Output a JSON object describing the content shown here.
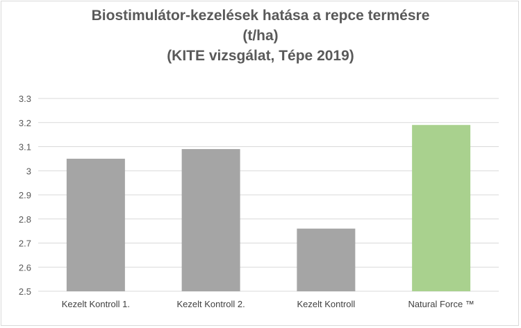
{
  "chart_data": {
    "type": "bar",
    "title_lines": [
      "Biostimulátor-kezelések hatása a repce termésre",
      "(t/ha)",
      "(KITE vizsgálat, Tépe 2019)"
    ],
    "categories": [
      "Kezelt Kontroll 1.",
      "Kezelt Kontroll 2.",
      "Kezelt Kontroll",
      "Natural Force ™"
    ],
    "values": [
      3.05,
      3.09,
      2.76,
      3.19
    ],
    "bar_colors": [
      "#a5a5a5",
      "#a5a5a5",
      "#a5a5a5",
      "#a9d18e"
    ],
    "ylim": [
      2.5,
      3.3
    ],
    "yticks": [
      "2.5",
      "2.6",
      "2.7",
      "2.8",
      "2.9",
      "3",
      "3.1",
      "3.2",
      "3.3"
    ],
    "grid": true,
    "legend": "none",
    "xlabel": "",
    "ylabel": ""
  }
}
